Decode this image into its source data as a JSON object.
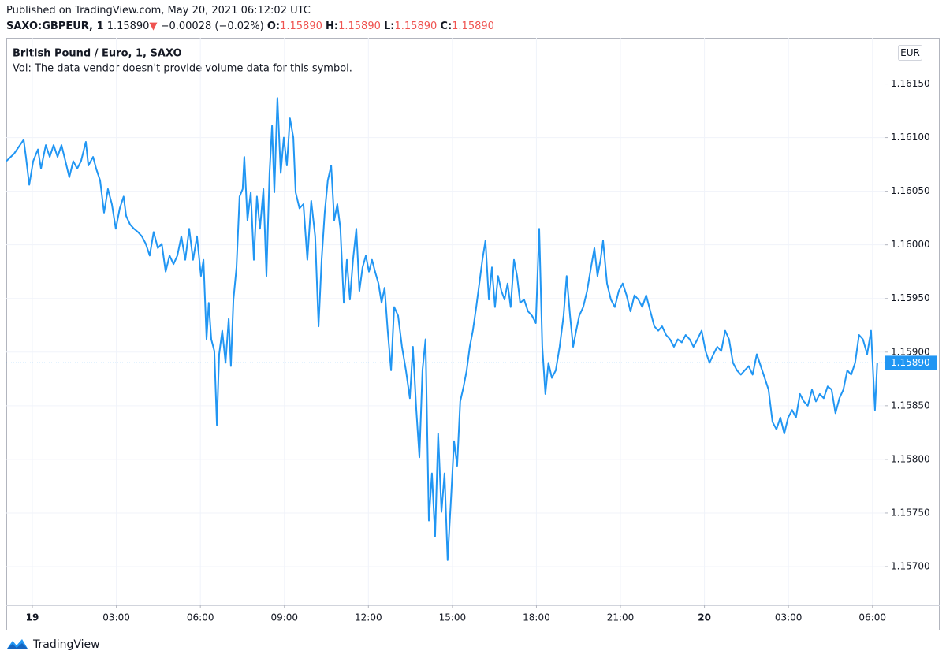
{
  "header": {
    "published": "Published on TradingView.com, May 20, 2021 06:12:02 UTC",
    "symbol": "SAXO:GBPEUR, 1",
    "price": "1.15890",
    "arrow": "▼",
    "change": "−0.00028 (−0.02%)",
    "o_label": "O:",
    "o": "1.15890",
    "h_label": "H:",
    "h": "1.15890",
    "l_label": "L:",
    "l": "1.15890",
    "c_label": "C:",
    "c": "1.15890"
  },
  "footer": {
    "brand": "TradingView"
  },
  "chart_data": {
    "type": "line",
    "title": "British Pound / Euro, 1, SAXO",
    "subtitle": "Vol: The data vendor doesn't provide volume data for this symbol.",
    "currency": "EUR",
    "color": "#2196f3",
    "grid": true,
    "last_price": {
      "value": 1.1589,
      "label": "1.15890"
    },
    "xlim": [
      -0.93,
      30.43
    ],
    "ylim": [
      1.15664,
      1.16193
    ],
    "xticks": [
      {
        "value": 0,
        "label": "19"
      },
      {
        "value": 3,
        "label": "03:00"
      },
      {
        "value": 6,
        "label": "06:00"
      },
      {
        "value": 9,
        "label": "09:00"
      },
      {
        "value": 12,
        "label": "12:00"
      },
      {
        "value": 15,
        "label": "15:00"
      },
      {
        "value": 18,
        "label": "18:00"
      },
      {
        "value": 21,
        "label": "21:00"
      },
      {
        "value": 24,
        "label": "20"
      },
      {
        "value": 27,
        "label": "03:00"
      },
      {
        "value": 30,
        "label": "06:00"
      }
    ],
    "yticks": [
      {
        "value": 1.157,
        "label": "1.15700"
      },
      {
        "value": 1.1575,
        "label": "1.15750"
      },
      {
        "value": 1.158,
        "label": "1.15800"
      },
      {
        "value": 1.1585,
        "label": "1.15850"
      },
      {
        "value": 1.159,
        "label": "1.15900"
      },
      {
        "value": 1.1595,
        "label": "1.15950"
      },
      {
        "value": 1.16,
        "label": "1.16000"
      },
      {
        "value": 1.1605,
        "label": "1.16050"
      },
      {
        "value": 1.161,
        "label": "1.16100"
      },
      {
        "value": 1.1615,
        "label": "1.16150"
      }
    ],
    "x": [
      -0.93,
      -0.65,
      -0.31,
      -0.23,
      -0.11,
      0.03,
      0.2,
      0.31,
      0.48,
      0.62,
      0.76,
      0.9,
      1.04,
      1.18,
      1.32,
      1.46,
      1.6,
      1.74,
      1.91,
      2.0,
      2.17,
      2.28,
      2.42,
      2.56,
      2.7,
      2.84,
      2.98,
      3.12,
      3.26,
      3.35,
      3.49,
      3.63,
      3.77,
      3.91,
      4.05,
      4.19,
      4.33,
      4.48,
      4.62,
      4.76,
      4.9,
      5.04,
      5.18,
      5.32,
      5.46,
      5.6,
      5.74,
      5.88,
      6.02,
      6.11,
      6.22,
      6.3,
      6.39,
      6.5,
      6.59,
      6.67,
      6.78,
      6.9,
      7.01,
      7.09,
      7.18,
      7.29,
      7.4,
      7.51,
      7.57,
      7.68,
      7.8,
      7.91,
      8.02,
      8.13,
      8.25,
      8.36,
      8.47,
      8.56,
      8.64,
      8.75,
      8.87,
      8.98,
      9.09,
      9.2,
      9.32,
      9.4,
      9.54,
      9.68,
      9.82,
      9.96,
      10.1,
      10.22,
      10.33,
      10.44,
      10.55,
      10.67,
      10.78,
      10.89,
      11.0,
      11.12,
      11.23,
      11.34,
      11.45,
      11.57,
      11.68,
      11.79,
      11.91,
      12.02,
      12.13,
      12.24,
      12.36,
      12.47,
      12.58,
      12.69,
      12.81,
      12.92,
      13.06,
      13.2,
      13.34,
      13.48,
      13.59,
      13.71,
      13.82,
      13.93,
      14.04,
      14.16,
      14.27,
      14.38,
      14.49,
      14.61,
      14.72,
      14.83,
      14.94,
      15.06,
      15.17,
      15.28,
      15.4,
      15.51,
      15.62,
      15.73,
      15.85,
      15.96,
      16.07,
      16.18,
      16.3,
      16.41,
      16.52,
      16.63,
      16.75,
      16.86,
      16.97,
      17.08,
      17.2,
      17.31,
      17.42,
      17.56,
      17.7,
      17.84,
      17.98,
      18.1,
      18.21,
      18.32,
      18.43,
      18.55,
      18.69,
      18.83,
      18.97,
      19.08,
      19.2,
      19.31,
      19.42,
      19.53,
      19.67,
      19.81,
      19.95,
      20.07,
      20.18,
      20.29,
      20.38,
      20.52,
      20.66,
      20.8,
      20.94,
      21.08,
      21.22,
      21.36,
      21.5,
      21.64,
      21.78,
      21.92,
      22.07,
      22.21,
      22.35,
      22.49,
      22.63,
      22.77,
      22.91,
      23.05,
      23.19,
      23.33,
      23.47,
      23.61,
      23.75,
      23.9,
      24.04,
      24.18,
      24.32,
      24.46,
      24.6,
      24.74,
      24.88,
      25.02,
      25.16,
      25.3,
      25.44,
      25.58,
      25.72,
      25.87,
      26.01,
      26.15,
      26.29,
      26.43,
      26.57,
      26.71,
      26.85,
      26.99,
      27.13,
      27.27,
      27.41,
      27.55,
      27.69,
      27.84,
      27.98,
      28.12,
      28.26,
      28.4,
      28.54,
      28.68,
      28.82,
      28.96,
      29.1,
      29.24,
      29.38,
      29.52,
      29.66,
      29.81,
      29.95,
      30.09,
      30.17
    ],
    "values": [
      1.16078,
      1.16085,
      1.16098,
      1.16082,
      1.16056,
      1.16078,
      1.16089,
      1.16071,
      1.16093,
      1.16082,
      1.16093,
      1.16082,
      1.16093,
      1.16078,
      1.16063,
      1.16078,
      1.16071,
      1.16078,
      1.16096,
      1.16074,
      1.16082,
      1.16071,
      1.1606,
      1.1603,
      1.16052,
      1.16038,
      1.16015,
      1.16034,
      1.16045,
      1.16027,
      1.16019,
      1.16015,
      1.16012,
      1.16008,
      1.16001,
      1.1599,
      1.16012,
      1.15997,
      1.16001,
      1.15975,
      1.1599,
      1.15982,
      1.1599,
      1.16008,
      1.15986,
      1.16015,
      1.15986,
      1.16008,
      1.15971,
      1.15986,
      1.15912,
      1.15946,
      1.15912,
      1.15901,
      1.15832,
      1.15898,
      1.1592,
      1.1589,
      1.15931,
      1.15887,
      1.15949,
      1.15979,
      1.16045,
      1.16052,
      1.16082,
      1.16023,
      1.16049,
      1.15986,
      1.16045,
      1.16015,
      1.16052,
      1.15971,
      1.16067,
      1.16111,
      1.16049,
      1.16137,
      1.16067,
      1.161,
      1.16074,
      1.16118,
      1.161,
      1.16049,
      1.16034,
      1.16038,
      1.15986,
      1.16041,
      1.16008,
      1.15924,
      1.15986,
      1.1603,
      1.1606,
      1.16074,
      1.16023,
      1.16038,
      1.16015,
      1.15946,
      1.15986,
      1.15949,
      1.15986,
      1.16015,
      1.15957,
      1.15979,
      1.1599,
      1.15975,
      1.15986,
      1.15975,
      1.15964,
      1.15946,
      1.1596,
      1.1592,
      1.15883,
      1.15942,
      1.15934,
      1.15905,
      1.15883,
      1.15857,
      1.15905,
      1.15846,
      1.15802,
      1.15883,
      1.15912,
      1.15743,
      1.15787,
      1.15728,
      1.15824,
      1.15751,
      1.15787,
      1.15706,
      1.15758,
      1.15817,
      1.15794,
      1.15854,
      1.15868,
      1.15883,
      1.15905,
      1.1592,
      1.15942,
      1.15964,
      1.15986,
      1.16004,
      1.15949,
      1.15979,
      1.15942,
      1.15971,
      1.15957,
      1.15949,
      1.15964,
      1.15942,
      1.15986,
      1.15971,
      1.15946,
      1.15949,
      1.15938,
      1.15934,
      1.15927,
      1.16015,
      1.15905,
      1.15861,
      1.1589,
      1.15876,
      1.15883,
      1.15905,
      1.15934,
      1.15971,
      1.15934,
      1.15905,
      1.1592,
      1.15934,
      1.15942,
      1.15957,
      1.15979,
      1.15997,
      1.15971,
      1.15986,
      1.16004,
      1.15964,
      1.15949,
      1.15942,
      1.15957,
      1.15964,
      1.15953,
      1.15938,
      1.15953,
      1.15949,
      1.15942,
      1.15953,
      1.15938,
      1.15924,
      1.1592,
      1.15924,
      1.15916,
      1.15912,
      1.15905,
      1.15912,
      1.15909,
      1.15916,
      1.15912,
      1.15905,
      1.15912,
      1.1592,
      1.15901,
      1.1589,
      1.15898,
      1.15905,
      1.15901,
      1.1592,
      1.15912,
      1.1589,
      1.15883,
      1.15879,
      1.15883,
      1.15887,
      1.15879,
      1.15898,
      1.15887,
      1.15876,
      1.15865,
      1.15835,
      1.15828,
      1.15839,
      1.15824,
      1.15839,
      1.15846,
      1.15839,
      1.15861,
      1.15854,
      1.1585,
      1.15865,
      1.15854,
      1.15861,
      1.15857,
      1.15868,
      1.15865,
      1.15843,
      1.15857,
      1.15865,
      1.15883,
      1.15879,
      1.1589,
      1.15916,
      1.15912,
      1.15898,
      1.1592,
      1.15846,
      1.1589
    ]
  }
}
